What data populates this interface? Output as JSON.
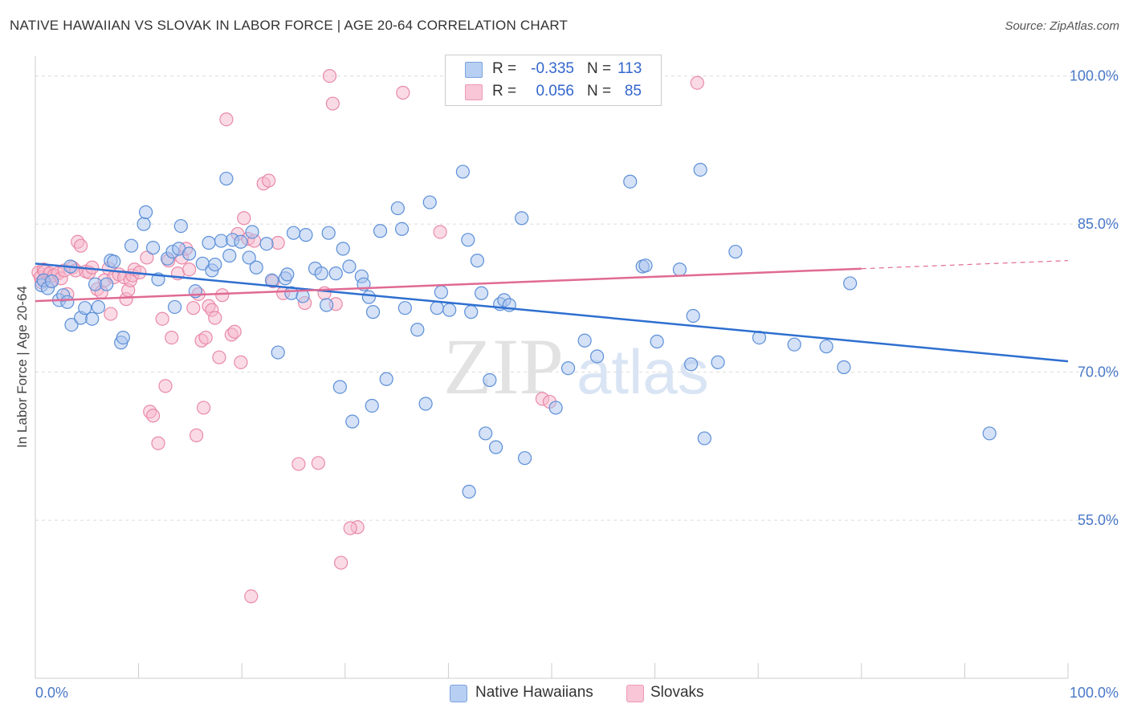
{
  "title": "NATIVE HAWAIIAN VS SLOVAK IN LABOR FORCE | AGE 20-64 CORRELATION CHART",
  "source": "Source: ZipAtlas.com",
  "watermark": {
    "zip": "ZIP",
    "atlas": "atlas"
  },
  "colors": {
    "blue_fill": "#a9c4ee",
    "blue_stroke": "#5c8fd8",
    "blue_line": "#2e6fd0",
    "pink_fill": "#f5b8cb",
    "pink_stroke": "#e989a8",
    "pink_line": "#e06a94",
    "grid": "#dcdcdc",
    "axis_text": "#4a78c8"
  },
  "legend_top": [
    {
      "r_label": "R =",
      "r_value": "-0.335",
      "n_label": "N =",
      "n_value": "113"
    },
    {
      "r_label": "R =",
      "r_value": "0.056",
      "n_label": "N =",
      "n_value": "85"
    }
  ],
  "legend_bottom": [
    "Native Hawaiians",
    "Slovaks"
  ],
  "chart_data": {
    "type": "scatter",
    "title": "NATIVE HAWAIIAN VS SLOVAK IN LABOR FORCE | AGE 20-64 CORRELATION CHART",
    "xlabel": "",
    "ylabel": "In Labor Force | Age 20-64",
    "xlim": [
      0,
      100
    ],
    "ylim": [
      39,
      102
    ],
    "x_tick_labels": [
      "0.0%",
      "100.0%"
    ],
    "y_ticks": [
      55,
      70,
      85,
      100
    ],
    "y_tick_labels": [
      "55.0%",
      "70.0%",
      "85.0%",
      "100.0%"
    ],
    "grid": true,
    "legend_position": "top-center",
    "series": [
      {
        "name": "Native Hawaiians",
        "r": -0.335,
        "n": 113,
        "trend": {
          "x": [
            0,
            100
          ],
          "y": [
            81.0,
            71.1
          ],
          "dashed_from": null
        },
        "points": [
          [
            0.6,
            78.8
          ],
          [
            0.8,
            79.3
          ],
          [
            1.2,
            78.5
          ],
          [
            1.6,
            79.2
          ],
          [
            2.3,
            77.3
          ],
          [
            2.7,
            77.8
          ],
          [
            3.1,
            77.1
          ],
          [
            3.4,
            80.7
          ],
          [
            3.5,
            74.8
          ],
          [
            4.4,
            75.5
          ],
          [
            4.8,
            76.5
          ],
          [
            5.5,
            75.4
          ],
          [
            5.8,
            78.9
          ],
          [
            6.1,
            76.6
          ],
          [
            6.9,
            78.9
          ],
          [
            7.3,
            81.3
          ],
          [
            7.6,
            81.2
          ],
          [
            8.3,
            73.0
          ],
          [
            8.5,
            73.5
          ],
          [
            9.3,
            82.8
          ],
          [
            10.5,
            85.0
          ],
          [
            10.7,
            86.2
          ],
          [
            11.4,
            82.6
          ],
          [
            11.9,
            79.4
          ],
          [
            12.8,
            81.5
          ],
          [
            13.3,
            82.2
          ],
          [
            13.5,
            76.6
          ],
          [
            13.9,
            82.5
          ],
          [
            14.1,
            84.8
          ],
          [
            14.9,
            82.0
          ],
          [
            15.5,
            78.2
          ],
          [
            16.2,
            81.0
          ],
          [
            16.8,
            83.1
          ],
          [
            17.1,
            80.3
          ],
          [
            17.4,
            80.9
          ],
          [
            18.0,
            83.3
          ],
          [
            18.5,
            89.6
          ],
          [
            18.8,
            81.8
          ],
          [
            19.1,
            83.4
          ],
          [
            19.9,
            83.2
          ],
          [
            20.7,
            81.6
          ],
          [
            21.0,
            84.2
          ],
          [
            21.4,
            80.6
          ],
          [
            22.4,
            83.0
          ],
          [
            22.9,
            79.3
          ],
          [
            23.5,
            72.0
          ],
          [
            24.2,
            79.5
          ],
          [
            24.4,
            79.9
          ],
          [
            24.8,
            78.0
          ],
          [
            25.0,
            84.1
          ],
          [
            25.9,
            77.7
          ],
          [
            26.2,
            83.9
          ],
          [
            27.1,
            80.5
          ],
          [
            27.7,
            80.0
          ],
          [
            28.2,
            76.8
          ],
          [
            28.4,
            84.1
          ],
          [
            29.1,
            80.0
          ],
          [
            29.5,
            68.5
          ],
          [
            29.8,
            82.5
          ],
          [
            30.4,
            80.7
          ],
          [
            30.7,
            65.0
          ],
          [
            31.6,
            79.7
          ],
          [
            31.8,
            78.9
          ],
          [
            32.3,
            77.6
          ],
          [
            32.6,
            66.6
          ],
          [
            32.7,
            76.1
          ],
          [
            33.4,
            84.3
          ],
          [
            34.0,
            69.3
          ],
          [
            35.1,
            86.6
          ],
          [
            35.5,
            84.5
          ],
          [
            35.8,
            76.5
          ],
          [
            37.0,
            74.3
          ],
          [
            37.8,
            66.8
          ],
          [
            38.2,
            87.2
          ],
          [
            38.9,
            76.5
          ],
          [
            39.3,
            78.1
          ],
          [
            40.1,
            76.3
          ],
          [
            41.4,
            90.3
          ],
          [
            41.9,
            83.4
          ],
          [
            42.2,
            76.1
          ],
          [
            42.8,
            81.3
          ],
          [
            43.2,
            78.0
          ],
          [
            43.6,
            63.8
          ],
          [
            44.0,
            69.2
          ],
          [
            44.6,
            62.4
          ],
          [
            45.0,
            76.9
          ],
          [
            45.4,
            77.3
          ],
          [
            45.9,
            76.8
          ],
          [
            47.1,
            85.6
          ],
          [
            47.4,
            61.3
          ],
          [
            50.4,
            66.4
          ],
          [
            51.6,
            70.4
          ],
          [
            53.2,
            73.2
          ],
          [
            54.4,
            71.6
          ],
          [
            57.6,
            89.3
          ],
          [
            58.8,
            80.7
          ],
          [
            59.1,
            80.8
          ],
          [
            60.2,
            73.1
          ],
          [
            62.4,
            80.4
          ],
          [
            63.5,
            70.8
          ],
          [
            63.7,
            75.7
          ],
          [
            64.4,
            90.5
          ],
          [
            64.8,
            63.3
          ],
          [
            66.1,
            71.0
          ],
          [
            67.8,
            82.2
          ],
          [
            70.1,
            73.5
          ],
          [
            73.5,
            72.8
          ],
          [
            76.6,
            72.6
          ],
          [
            78.3,
            70.5
          ],
          [
            78.9,
            79.0
          ],
          [
            92.4,
            63.8
          ],
          [
            42.0,
            57.9
          ]
        ]
      },
      {
        "name": "Slovaks",
        "r": 0.056,
        "n": 85,
        "trend": {
          "x": [
            0,
            100
          ],
          "y": [
            77.2,
            81.3
          ],
          "dashed_from": 80
        },
        "points": [
          [
            0.3,
            80.1
          ],
          [
            0.5,
            79.6
          ],
          [
            0.6,
            79.1
          ],
          [
            0.8,
            80.4
          ],
          [
            0.9,
            80.2
          ],
          [
            1.4,
            80.0
          ],
          [
            1.5,
            79.2
          ],
          [
            1.8,
            79.8
          ],
          [
            2.2,
            80.0
          ],
          [
            2.5,
            79.5
          ],
          [
            2.8,
            80.3
          ],
          [
            3.1,
            77.9
          ],
          [
            3.6,
            80.6
          ],
          [
            3.9,
            80.3
          ],
          [
            4.1,
            83.2
          ],
          [
            4.4,
            82.8
          ],
          [
            4.9,
            80.2
          ],
          [
            5.2,
            80.1
          ],
          [
            5.5,
            80.6
          ],
          [
            6.0,
            78.4
          ],
          [
            6.4,
            78.1
          ],
          [
            6.7,
            79.3
          ],
          [
            7.1,
            80.5
          ],
          [
            7.3,
            75.9
          ],
          [
            7.6,
            79.6
          ],
          [
            8.1,
            79.9
          ],
          [
            8.6,
            79.6
          ],
          [
            8.8,
            77.4
          ],
          [
            9.0,
            78.3
          ],
          [
            9.2,
            79.3
          ],
          [
            9.4,
            79.8
          ],
          [
            9.6,
            80.4
          ],
          [
            10.1,
            80.1
          ],
          [
            10.8,
            81.6
          ],
          [
            11.1,
            66.0
          ],
          [
            11.4,
            65.6
          ],
          [
            11.9,
            62.8
          ],
          [
            12.3,
            75.4
          ],
          [
            12.6,
            68.6
          ],
          [
            12.9,
            81.3
          ],
          [
            13.2,
            73.5
          ],
          [
            13.8,
            80.0
          ],
          [
            14.2,
            81.6
          ],
          [
            14.6,
            82.5
          ],
          [
            14.9,
            80.4
          ],
          [
            15.3,
            76.5
          ],
          [
            15.6,
            63.6
          ],
          [
            15.8,
            77.9
          ],
          [
            16.1,
            73.2
          ],
          [
            16.3,
            66.4
          ],
          [
            16.5,
            73.5
          ],
          [
            16.8,
            76.7
          ],
          [
            17.1,
            76.3
          ],
          [
            17.4,
            75.5
          ],
          [
            17.8,
            71.5
          ],
          [
            18.1,
            77.8
          ],
          [
            18.5,
            95.6
          ],
          [
            19.0,
            73.8
          ],
          [
            19.3,
            74.1
          ],
          [
            19.6,
            84.0
          ],
          [
            19.9,
            71.0
          ],
          [
            20.2,
            85.6
          ],
          [
            20.6,
            83.5
          ],
          [
            20.9,
            47.3
          ],
          [
            21.2,
            83.3
          ],
          [
            22.1,
            89.1
          ],
          [
            22.6,
            89.4
          ],
          [
            23.0,
            79.2
          ],
          [
            23.5,
            83.1
          ],
          [
            24.0,
            78.0
          ],
          [
            25.5,
            60.7
          ],
          [
            26.1,
            77.0
          ],
          [
            27.4,
            60.8
          ],
          [
            28.0,
            78.0
          ],
          [
            28.5,
            100.0
          ],
          [
            28.8,
            97.2
          ],
          [
            29.1,
            76.9
          ],
          [
            29.6,
            50.7
          ],
          [
            31.2,
            54.3
          ],
          [
            35.6,
            98.3
          ],
          [
            39.2,
            84.2
          ],
          [
            49.1,
            67.3
          ],
          [
            49.8,
            67.0
          ],
          [
            64.1,
            99.3
          ],
          [
            30.5,
            54.2
          ]
        ]
      }
    ]
  }
}
